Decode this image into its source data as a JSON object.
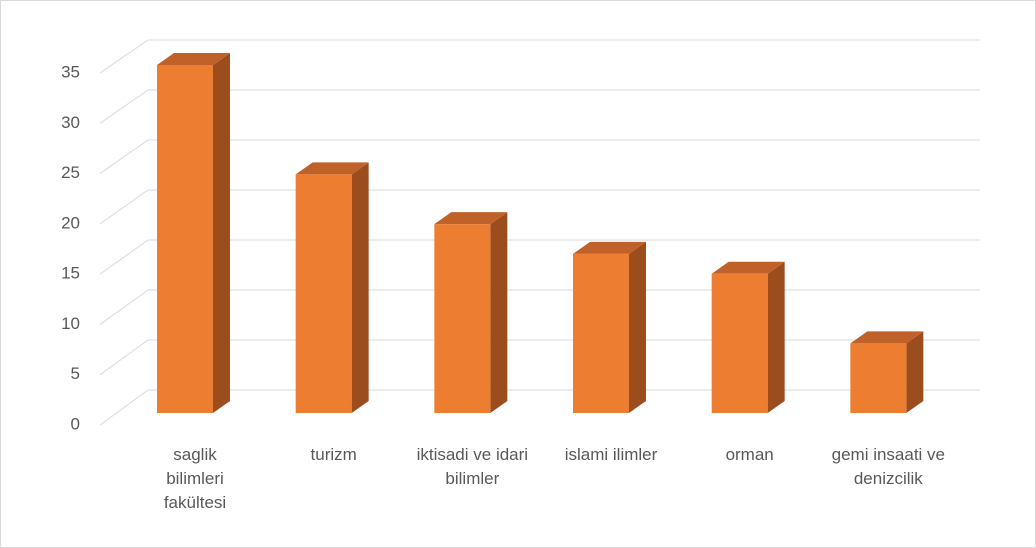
{
  "chart_data": {
    "type": "bar3d",
    "categories": [
      "saglik bilimleri fakültesi",
      "turizm",
      "iktisadi ve idari bilimler",
      "islami ilimler",
      "orman",
      "gemi insaati ve denizcilik"
    ],
    "values": [
      35,
      24,
      19,
      16,
      14,
      7
    ],
    "color": "#ed7d31",
    "ylim": [
      0,
      35
    ],
    "yticks": [
      0,
      5,
      10,
      15,
      20,
      25,
      30,
      35
    ],
    "grid": true
  }
}
